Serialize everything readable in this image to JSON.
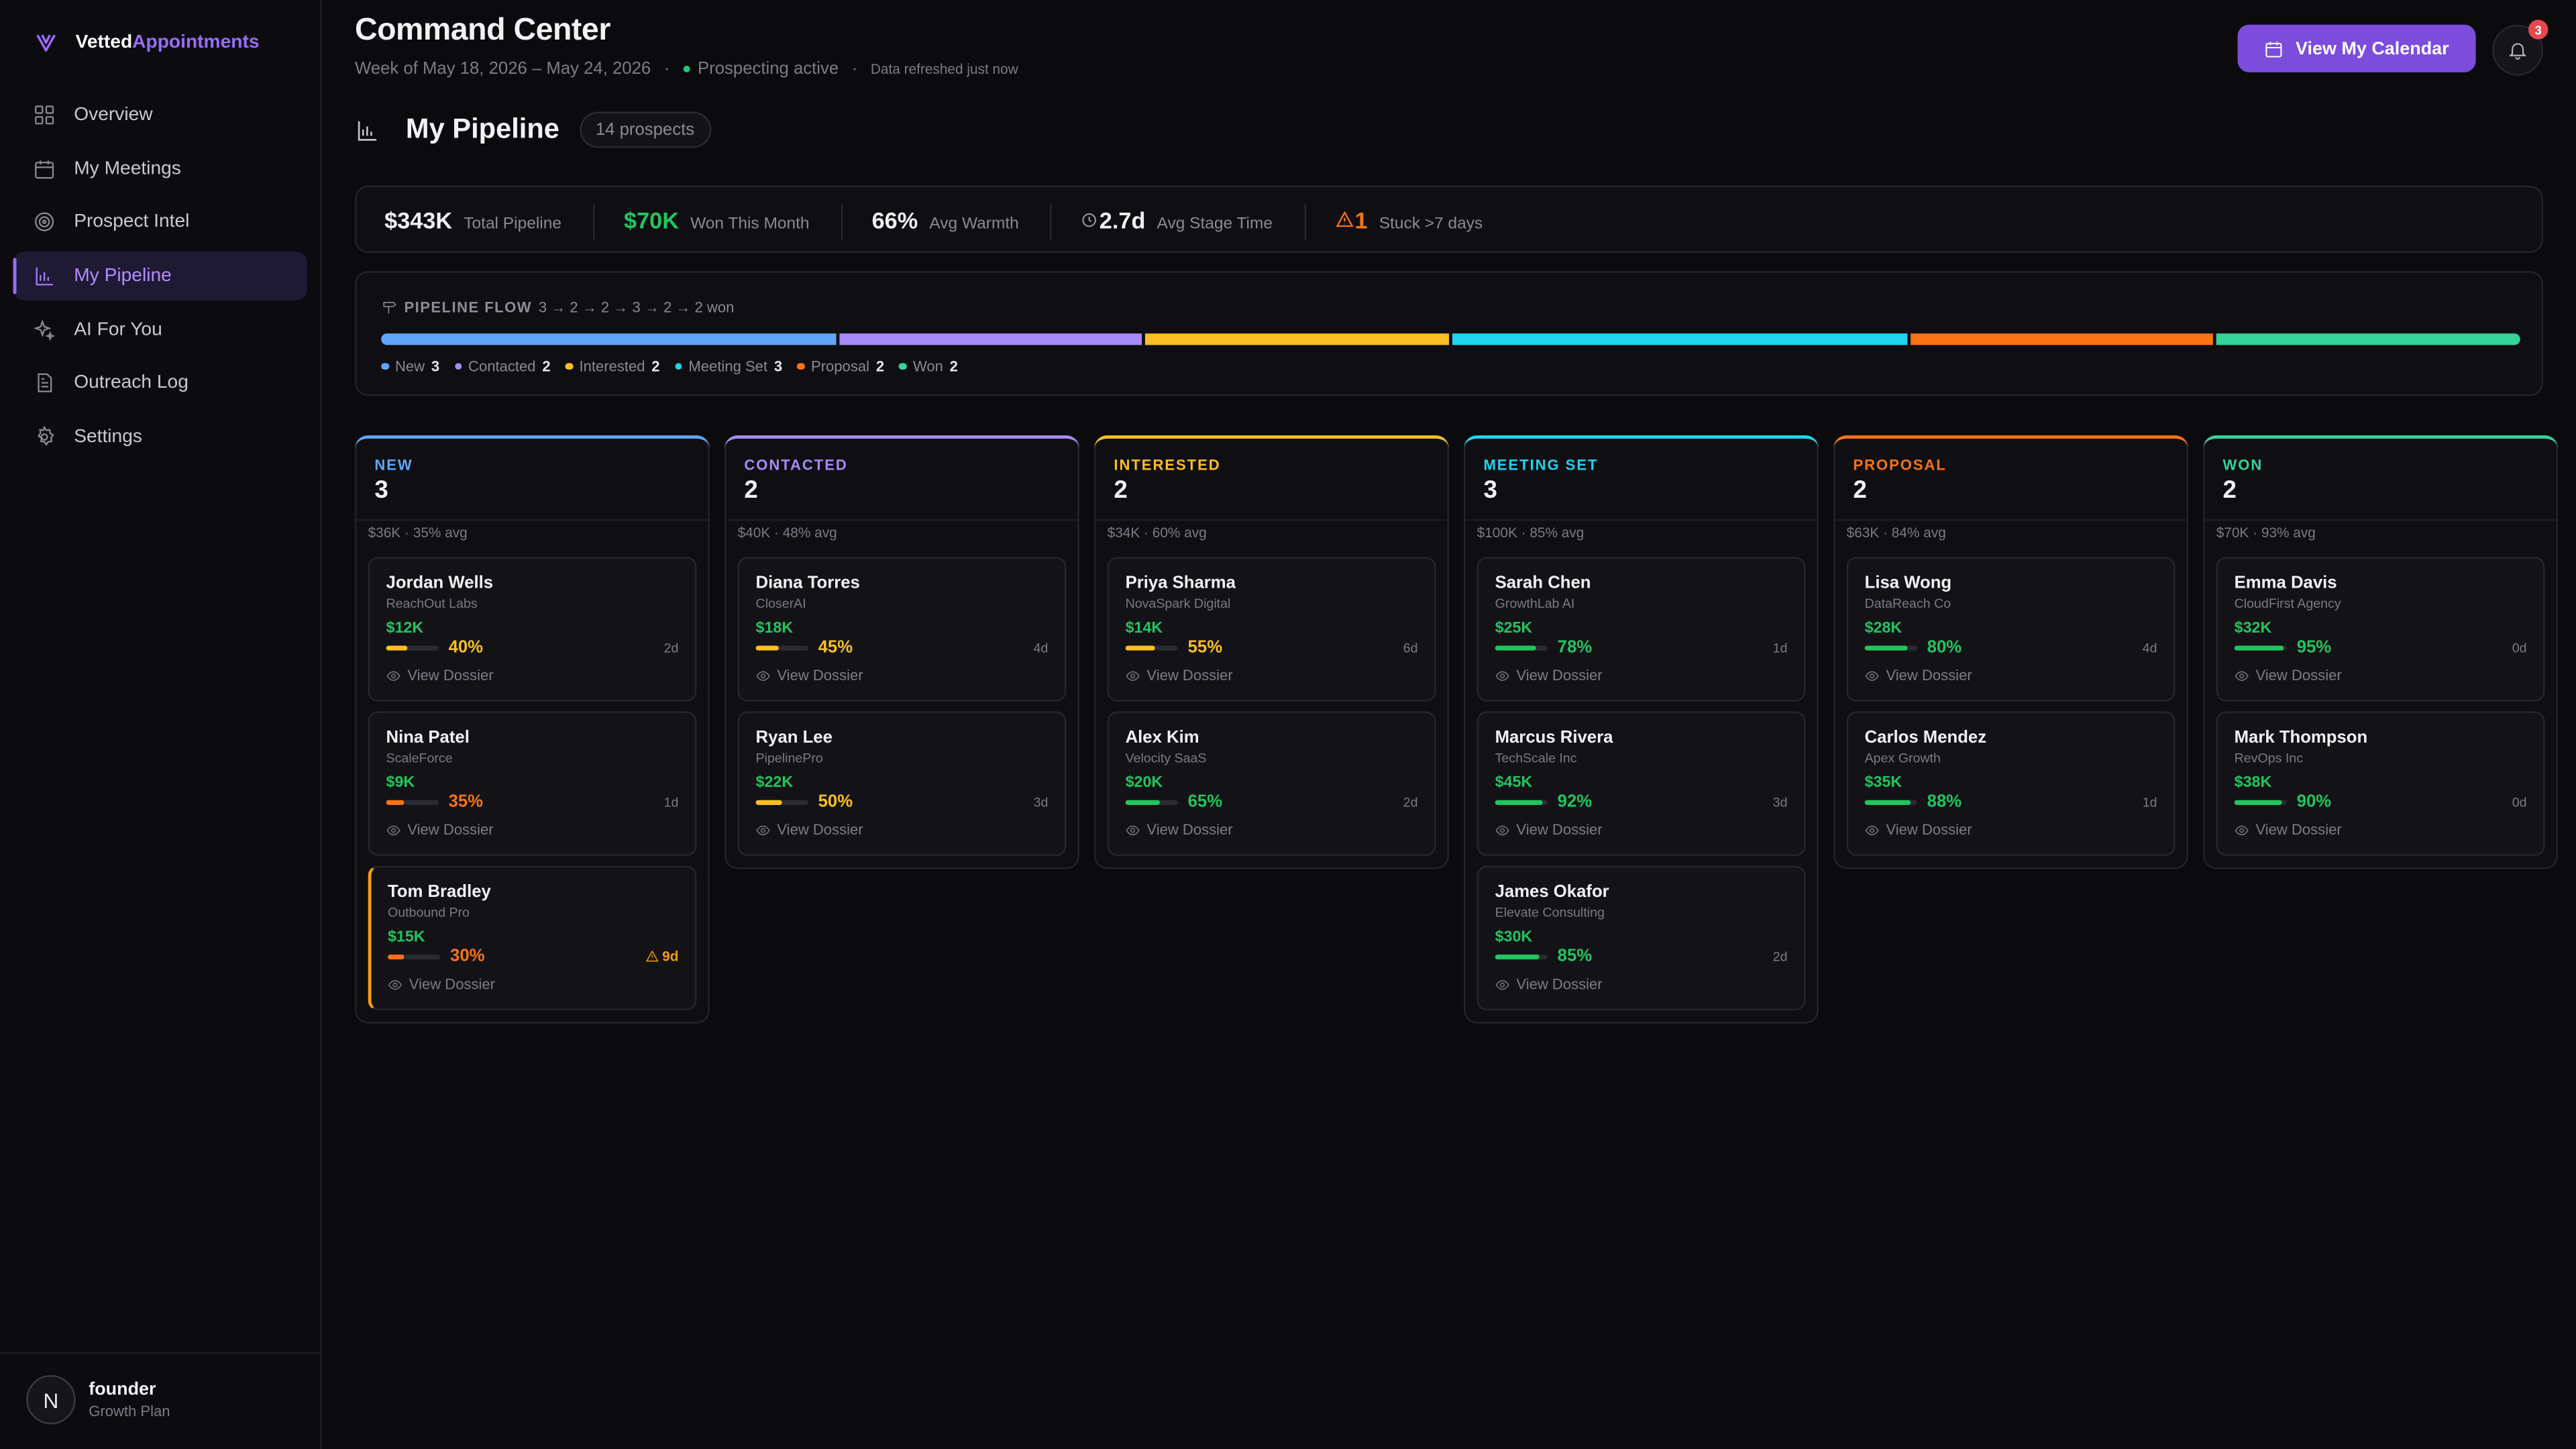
{
  "brand": {
    "part1": "Vetted",
    "part2": "Appointments"
  },
  "sidebar": {
    "items": [
      {
        "label": "Overview",
        "icon": "grid-icon"
      },
      {
        "label": "My Meetings",
        "icon": "calendar-icon"
      },
      {
        "label": "Prospect Intel",
        "icon": "target-icon"
      },
      {
        "label": "My Pipeline",
        "icon": "bar-chart-icon",
        "active": true
      },
      {
        "label": "AI For You",
        "icon": "sparkles-icon"
      },
      {
        "label": "Outreach Log",
        "icon": "document-icon"
      },
      {
        "label": "Settings",
        "icon": "gear-icon"
      }
    ]
  },
  "user": {
    "initial": "N",
    "name": "founder",
    "plan": "Growth Plan"
  },
  "header": {
    "title": "Command Center",
    "week": "Week of May 18, 2026 – May 24, 2026",
    "status": "Prospecting active",
    "refresh": "Data refreshed just now",
    "calendar_button": "View My Calendar",
    "notifications": "3"
  },
  "pipeline": {
    "title": "My Pipeline",
    "count": "14 prospects"
  },
  "stats": {
    "total_prefix": "$",
    "total_value": "$343K",
    "total_label": "Total Pipeline",
    "won_value": "$70K",
    "won_label": "Won This Month",
    "warmth_value": "66%",
    "warmth_label": "Avg Warmth",
    "stage_value": "2.7d",
    "stage_label": "Avg Stage Time",
    "stuck_value": "1",
    "stuck_label": "Stuck >7 days"
  },
  "flow": {
    "title": "PIPELINE FLOW",
    "summary": "3 → 2 → 2 → 3 → 2 → 2 won",
    "stages": [
      {
        "name": "New",
        "count": "3",
        "color": "#60a5fa"
      },
      {
        "name": "Contacted",
        "count": "2",
        "color": "#a78bfa"
      },
      {
        "name": "Interested",
        "count": "2",
        "color": "#fbbf24"
      },
      {
        "name": "Meeting Set",
        "count": "3",
        "color": "#22d3ee"
      },
      {
        "name": "Proposal",
        "count": "2",
        "color": "#f97316"
      },
      {
        "name": "Won",
        "count": "2",
        "color": "#34d399"
      }
    ]
  },
  "columns": [
    {
      "name": "NEW",
      "count": "3",
      "meta": "$36K · 35% avg",
      "color": "#60a5fa",
      "cards": [
        {
          "name": "Jordan Wells",
          "company": "ReachOut Labs",
          "amount": "$12K",
          "pct": "40%",
          "warmth": 40,
          "pct_color": "#fbbf24",
          "age": "2d",
          "action": "View Dossier"
        },
        {
          "name": "Nina Patel",
          "company": "ScaleForce",
          "amount": "$9K",
          "pct": "35%",
          "warmth": 35,
          "pct_color": "#f97316",
          "age": "1d",
          "action": "View Dossier"
        },
        {
          "name": "Tom Bradley",
          "company": "Outbound Pro",
          "amount": "$15K",
          "pct": "30%",
          "warmth": 30,
          "pct_color": "#f97316",
          "age": "9d",
          "stuck": true,
          "action": "View Dossier"
        }
      ]
    },
    {
      "name": "CONTACTED",
      "count": "2",
      "meta": "$40K · 48% avg",
      "color": "#a78bfa",
      "cards": [
        {
          "name": "Diana Torres",
          "company": "CloserAI",
          "amount": "$18K",
          "pct": "45%",
          "warmth": 45,
          "pct_color": "#fbbf24",
          "age": "4d",
          "action": "View Dossier"
        },
        {
          "name": "Ryan Lee",
          "company": "PipelinePro",
          "amount": "$22K",
          "pct": "50%",
          "warmth": 50,
          "pct_color": "#fbbf24",
          "age": "3d",
          "action": "View Dossier"
        }
      ]
    },
    {
      "name": "INTERESTED",
      "count": "2",
      "meta": "$34K · 60% avg",
      "color": "#fbbf24",
      "cards": [
        {
          "name": "Priya Sharma",
          "company": "NovaSpark Digital",
          "amount": "$14K",
          "pct": "55%",
          "warmth": 55,
          "pct_color": "#fbbf24",
          "age": "6d",
          "action": "View Dossier"
        },
        {
          "name": "Alex Kim",
          "company": "Velocity SaaS",
          "amount": "$20K",
          "pct": "65%",
          "warmth": 65,
          "pct_color": "#22c55e",
          "age": "2d",
          "action": "View Dossier"
        }
      ]
    },
    {
      "name": "MEETING SET",
      "count": "3",
      "meta": "$100K · 85% avg",
      "color": "#22d3ee",
      "cards": [
        {
          "name": "Sarah Chen",
          "company": "GrowthLab AI",
          "amount": "$25K",
          "pct": "78%",
          "warmth": 78,
          "pct_color": "#22c55e",
          "age": "1d",
          "action": "View Dossier"
        },
        {
          "name": "Marcus Rivera",
          "company": "TechScale Inc",
          "amount": "$45K",
          "pct": "92%",
          "warmth": 92,
          "pct_color": "#22c55e",
          "age": "3d",
          "action": "View Dossier"
        },
        {
          "name": "James Okafor",
          "company": "Elevate Consulting",
          "amount": "$30K",
          "pct": "85%",
          "warmth": 85,
          "pct_color": "#22c55e",
          "age": "2d",
          "action": "View Dossier"
        }
      ]
    },
    {
      "name": "PROPOSAL",
      "count": "2",
      "meta": "$63K · 84% avg",
      "color": "#f97316",
      "cards": [
        {
          "name": "Lisa Wong",
          "company": "DataReach Co",
          "amount": "$28K",
          "pct": "80%",
          "warmth": 80,
          "pct_color": "#22c55e",
          "age": "4d",
          "action": "View Dossier"
        },
        {
          "name": "Carlos Mendez",
          "company": "Apex Growth",
          "amount": "$35K",
          "pct": "88%",
          "warmth": 88,
          "pct_color": "#22c55e",
          "age": "1d",
          "action": "View Dossier"
        }
      ]
    },
    {
      "name": "WON",
      "count": "2",
      "meta": "$70K · 93% avg",
      "color": "#34d399",
      "cards": [
        {
          "name": "Emma Davis",
          "company": "CloudFirst Agency",
          "amount": "$32K",
          "pct": "95%",
          "warmth": 95,
          "pct_color": "#22c55e",
          "age": "0d",
          "action": "View Dossier"
        },
        {
          "name": "Mark Thompson",
          "company": "RevOps Inc",
          "amount": "$38K",
          "pct": "90%",
          "warmth": 90,
          "pct_color": "#22c55e",
          "age": "0d",
          "action": "View Dossier"
        }
      ]
    }
  ]
}
